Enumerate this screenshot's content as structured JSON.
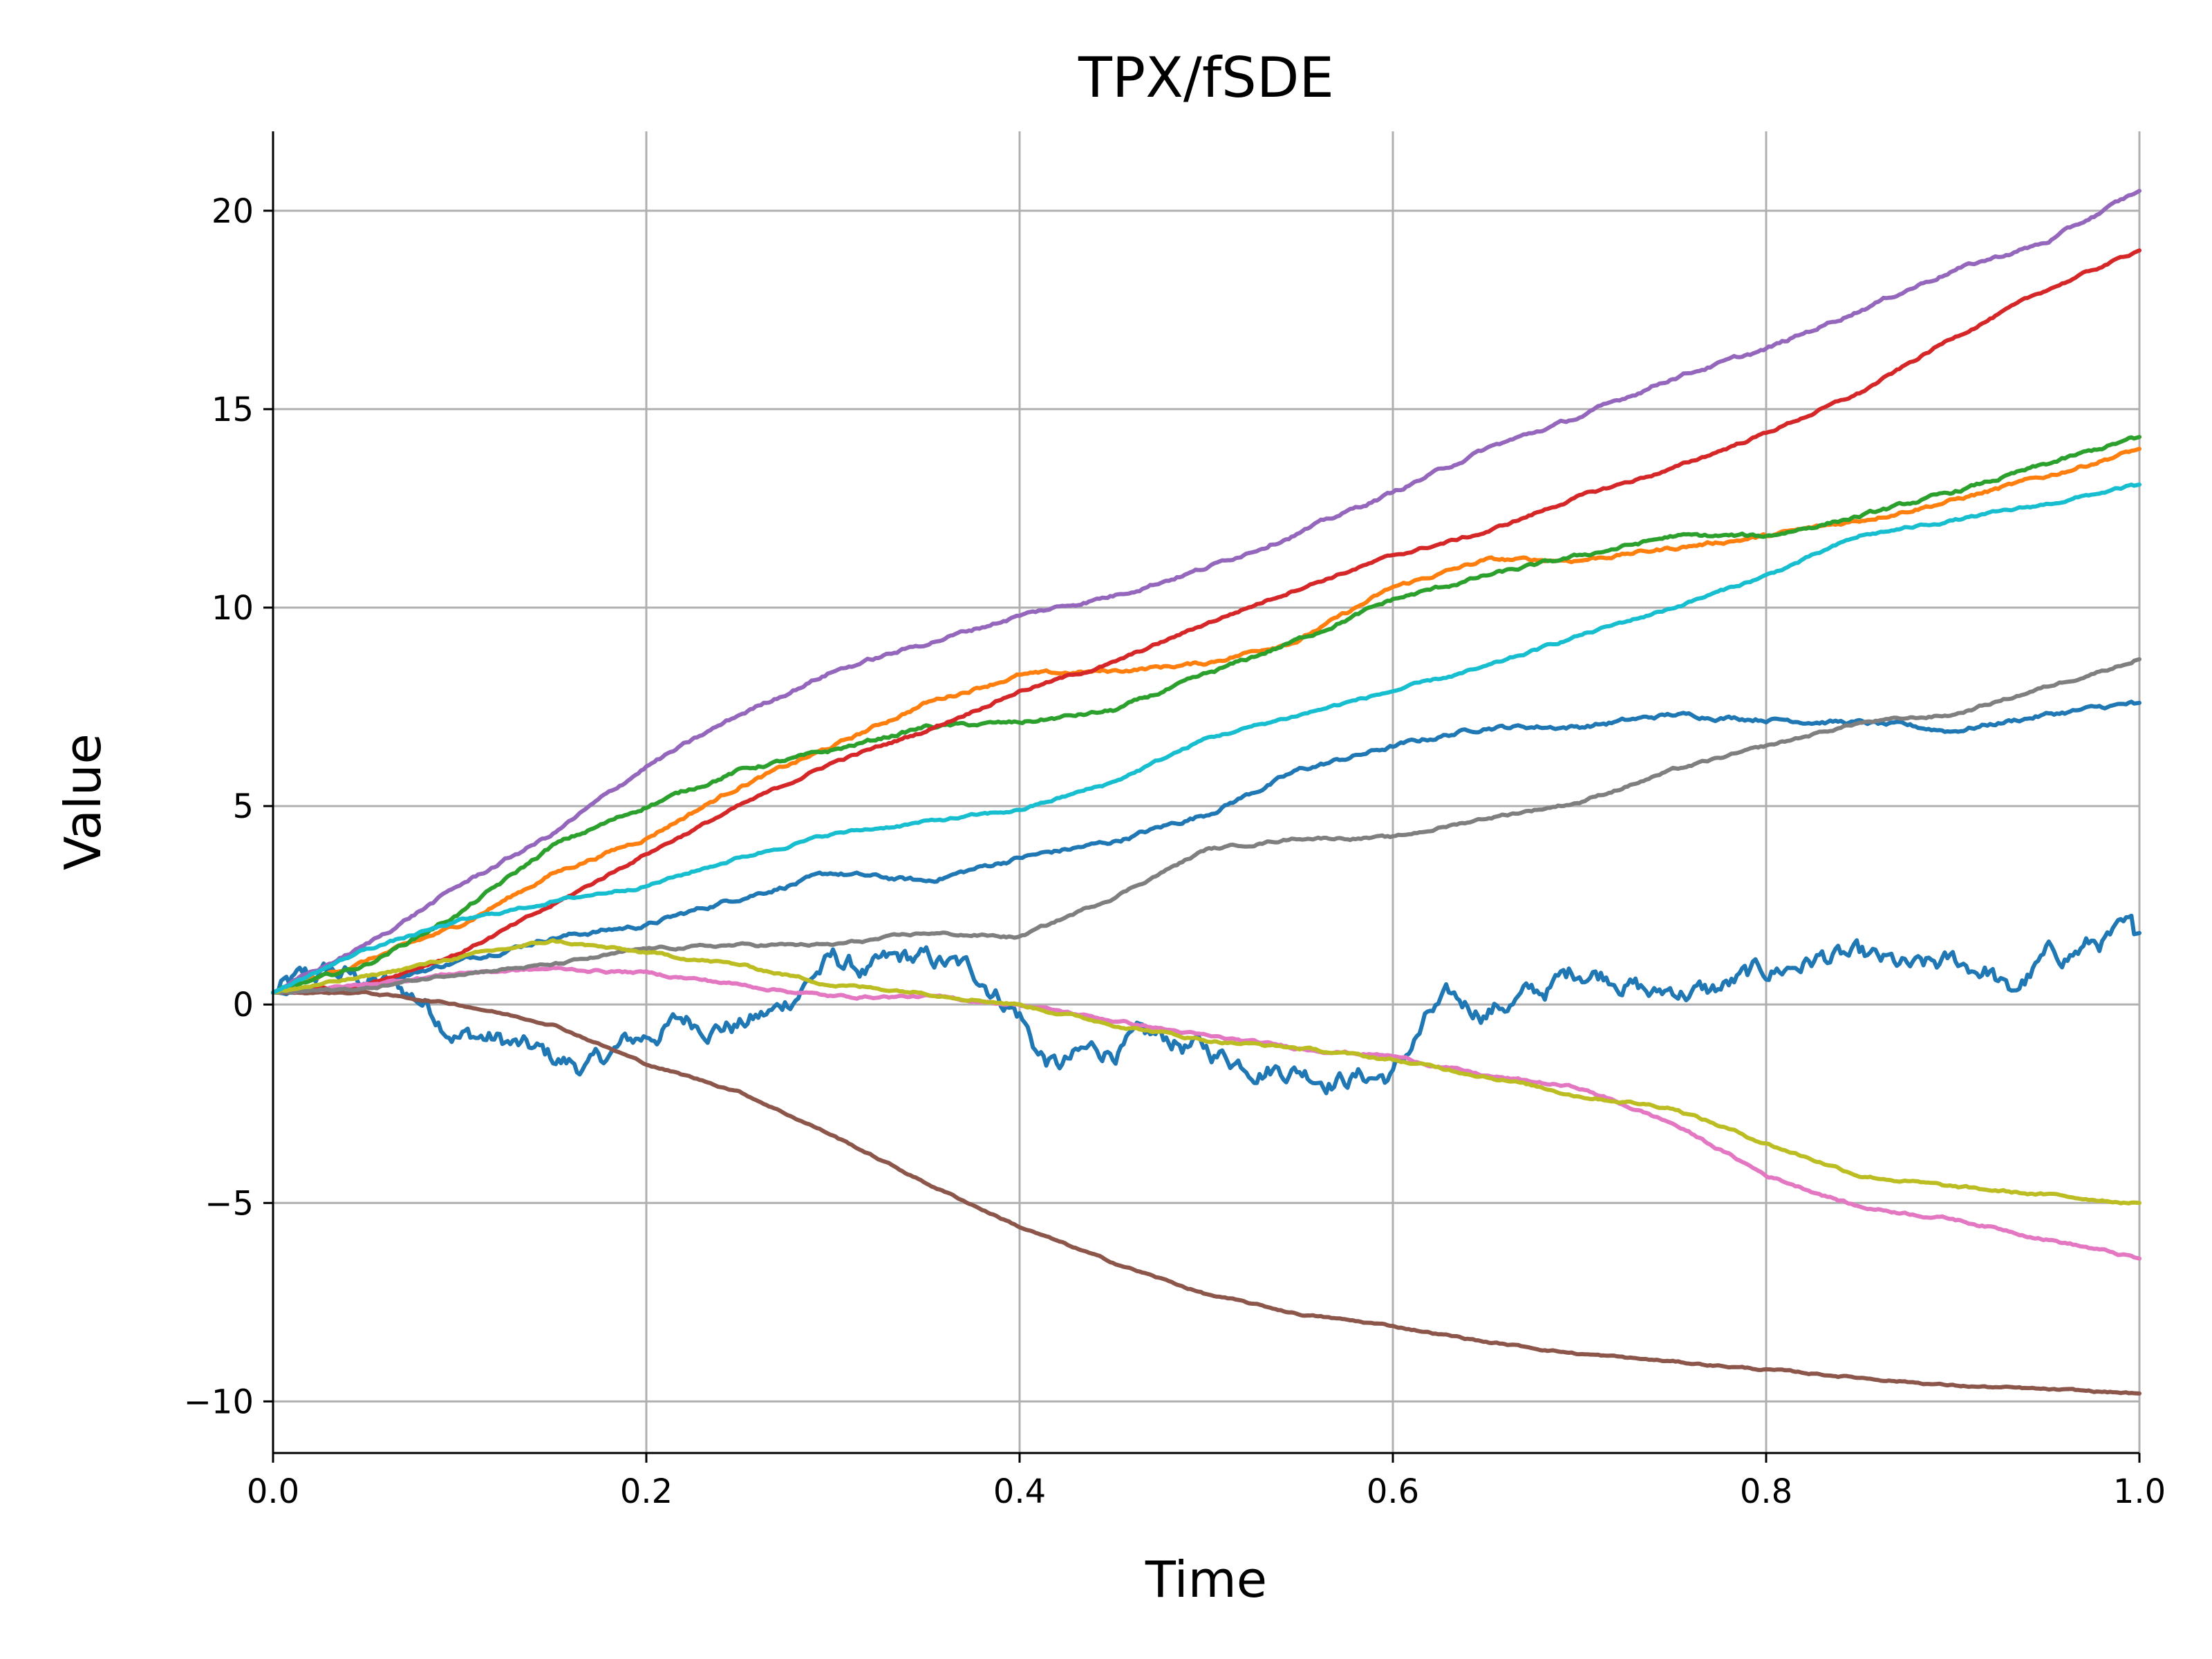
{
  "chart_data": {
    "type": "line",
    "title": "TPX/fSDE",
    "xlabel": "Time",
    "ylabel": "Value",
    "xlim": [
      0.0,
      1.0
    ],
    "ylim": [
      -11.3,
      22.0
    ],
    "xticks": [
      0.0,
      0.2,
      0.4,
      0.6,
      0.8,
      1.0
    ],
    "xtick_labels": [
      "0.0",
      "0.2",
      "0.4",
      "0.6",
      "0.8",
      "1.0"
    ],
    "yticks": [
      -10,
      -5,
      0,
      5,
      10,
      15,
      20
    ],
    "ytick_labels": [
      "−10",
      "−5",
      "0",
      "5",
      "10",
      "15",
      "20"
    ],
    "grid": true,
    "legend": "none",
    "series": [
      {
        "color": "#1f77b4",
        "noise": 0.25,
        "x": [
          0,
          0.03,
          0.06,
          0.08,
          0.1,
          0.12,
          0.15,
          0.17,
          0.19,
          0.2,
          0.22,
          0.25,
          0.27,
          0.29,
          0.3,
          0.32,
          0.34,
          0.36,
          0.38,
          0.4,
          0.41,
          0.42,
          0.44,
          0.46,
          0.48,
          0.5,
          0.52,
          0.55,
          0.57,
          0.6,
          0.62,
          0.63,
          0.65,
          0.68,
          0.7,
          0.72,
          0.74,
          0.75,
          0.77,
          0.8,
          0.83,
          0.85,
          0.88,
          0.9,
          0.92,
          0.93,
          0.95,
          0.98,
          1.0
        ],
        "y": [
          0.3,
          0.8,
          0.5,
          0.1,
          -0.7,
          -0.9,
          -1.4,
          -1.6,
          -1.0,
          -0.8,
          -0.4,
          -0.5,
          -0.2,
          0.8,
          1.1,
          0.8,
          1.1,
          1.0,
          0.7,
          -0.2,
          -1.2,
          -1.6,
          -1.2,
          -1.0,
          -0.9,
          -1.2,
          -1.4,
          -1.6,
          -1.8,
          -1.8,
          -0.3,
          0.0,
          -0.1,
          0.3,
          0.9,
          0.8,
          0.2,
          0.4,
          0.3,
          0.8,
          1.2,
          1.1,
          0.8,
          1.0,
          0.9,
          0.2,
          1.1,
          1.6,
          1.8
        ]
      },
      {
        "color": "#1f77b4",
        "noise": 0.05,
        "x": [
          0,
          0.05,
          0.1,
          0.15,
          0.2,
          0.25,
          0.3,
          0.35,
          0.4,
          0.45,
          0.5,
          0.55,
          0.6,
          0.65,
          0.7,
          0.75,
          0.8,
          0.85,
          0.9,
          0.95,
          1.0
        ],
        "y": [
          0.3,
          0.5,
          1.1,
          1.7,
          2.0,
          2.7,
          3.3,
          3.1,
          3.7,
          4.1,
          4.8,
          5.9,
          6.5,
          7.0,
          7.0,
          7.3,
          7.2,
          7.1,
          6.9,
          7.3,
          7.6
        ]
      },
      {
        "color": "#ff7f0e",
        "noise": 0.04,
        "x": [
          0,
          0.05,
          0.1,
          0.15,
          0.2,
          0.25,
          0.3,
          0.35,
          0.4,
          0.45,
          0.5,
          0.55,
          0.6,
          0.65,
          0.7,
          0.75,
          0.8,
          0.85,
          0.9,
          0.95,
          1.0
        ],
        "y": [
          0.3,
          1.1,
          2.0,
          3.3,
          4.2,
          5.5,
          6.5,
          7.6,
          8.3,
          8.4,
          8.6,
          9.2,
          10.5,
          11.2,
          11.2,
          11.5,
          11.8,
          12.2,
          12.7,
          13.3,
          14.0
        ]
      },
      {
        "color": "#2ca02c",
        "noise": 0.04,
        "x": [
          0,
          0.05,
          0.1,
          0.15,
          0.2,
          0.25,
          0.3,
          0.35,
          0.4,
          0.45,
          0.5,
          0.55,
          0.6,
          0.65,
          0.7,
          0.75,
          0.8,
          0.85,
          0.9,
          0.95,
          1.0
        ],
        "y": [
          0.3,
          1.0,
          2.3,
          4.0,
          5.0,
          5.9,
          6.4,
          7.0,
          7.1,
          7.4,
          8.3,
          9.2,
          10.2,
          10.8,
          11.3,
          11.8,
          11.8,
          12.3,
          12.9,
          13.6,
          14.3
        ]
      },
      {
        "color": "#d62728",
        "noise": 0.03,
        "x": [
          0,
          0.05,
          0.1,
          0.15,
          0.2,
          0.25,
          0.3,
          0.35,
          0.4,
          0.45,
          0.5,
          0.55,
          0.6,
          0.65,
          0.7,
          0.75,
          0.8,
          0.85,
          0.9,
          0.95,
          1.0
        ],
        "y": [
          0.3,
          0.5,
          1.3,
          2.5,
          3.8,
          5.0,
          6.1,
          6.9,
          7.9,
          8.6,
          9.6,
          10.5,
          11.3,
          11.9,
          12.8,
          13.5,
          14.4,
          15.4,
          16.8,
          18.0,
          19.0
        ]
      },
      {
        "color": "#9467bd",
        "noise": 0.04,
        "x": [
          0,
          0.05,
          0.1,
          0.15,
          0.2,
          0.25,
          0.3,
          0.35,
          0.4,
          0.45,
          0.5,
          0.55,
          0.6,
          0.65,
          0.7,
          0.75,
          0.8,
          0.85,
          0.9,
          0.95,
          1.0
        ],
        "y": [
          0.3,
          1.5,
          3.0,
          4.3,
          6.0,
          7.3,
          8.4,
          9.1,
          9.8,
          10.3,
          11.0,
          11.9,
          12.9,
          14.0,
          14.8,
          15.8,
          16.5,
          17.5,
          18.5,
          19.2,
          20.5
        ]
      },
      {
        "color": "#8c564b",
        "noise": 0.02,
        "x": [
          0,
          0.05,
          0.1,
          0.15,
          0.2,
          0.25,
          0.3,
          0.35,
          0.4,
          0.45,
          0.5,
          0.55,
          0.6,
          0.65,
          0.7,
          0.75,
          0.8,
          0.85,
          0.9,
          0.95,
          1.0
        ],
        "y": [
          0.3,
          0.3,
          0.0,
          -0.5,
          -1.5,
          -2.2,
          -3.3,
          -4.5,
          -5.6,
          -6.5,
          -7.3,
          -7.8,
          -8.1,
          -8.5,
          -8.8,
          -9.0,
          -9.2,
          -9.4,
          -9.6,
          -9.7,
          -9.8
        ]
      },
      {
        "color": "#e377c2",
        "noise": 0.03,
        "x": [
          0,
          0.05,
          0.1,
          0.15,
          0.2,
          0.25,
          0.3,
          0.35,
          0.4,
          0.45,
          0.5,
          0.55,
          0.6,
          0.65,
          0.7,
          0.75,
          0.8,
          0.85,
          0.9,
          0.95,
          1.0
        ],
        "y": [
          0.3,
          0.5,
          0.8,
          0.9,
          0.8,
          0.5,
          0.2,
          0.2,
          0.0,
          -0.4,
          -0.8,
          -1.1,
          -1.3,
          -1.8,
          -2.1,
          -3.0,
          -4.3,
          -5.1,
          -5.4,
          -5.9,
          -6.4
        ]
      },
      {
        "color": "#7f7f7f",
        "noise": 0.03,
        "x": [
          0,
          0.05,
          0.1,
          0.15,
          0.2,
          0.25,
          0.3,
          0.35,
          0.4,
          0.45,
          0.5,
          0.55,
          0.6,
          0.65,
          0.7,
          0.75,
          0.8,
          0.85,
          0.9,
          0.95,
          1.0
        ],
        "y": [
          0.3,
          0.4,
          0.8,
          1.0,
          1.4,
          1.5,
          1.5,
          1.8,
          1.7,
          2.7,
          3.9,
          4.2,
          4.2,
          4.7,
          5.1,
          5.9,
          6.5,
          7.1,
          7.3,
          8.0,
          8.7
        ]
      },
      {
        "color": "#bcbd22",
        "noise": 0.03,
        "x": [
          0,
          0.05,
          0.1,
          0.15,
          0.2,
          0.25,
          0.3,
          0.35,
          0.4,
          0.45,
          0.5,
          0.55,
          0.6,
          0.65,
          0.7,
          0.75,
          0.8,
          0.85,
          0.9,
          0.95,
          1.0
        ],
        "y": [
          0.3,
          0.7,
          1.2,
          1.6,
          1.3,
          1.0,
          0.5,
          0.3,
          0.0,
          -0.5,
          -0.9,
          -1.1,
          -1.4,
          -1.8,
          -2.3,
          -2.6,
          -3.5,
          -4.3,
          -4.6,
          -4.8,
          -5.0
        ]
      },
      {
        "color": "#17becf",
        "noise": 0.03,
        "x": [
          0,
          0.05,
          0.1,
          0.15,
          0.2,
          0.25,
          0.3,
          0.35,
          0.4,
          0.45,
          0.5,
          0.55,
          0.6,
          0.65,
          0.7,
          0.75,
          0.8,
          0.85,
          0.9,
          0.95,
          1.0
        ],
        "y": [
          0.3,
          1.4,
          2.1,
          2.6,
          3.0,
          3.7,
          4.3,
          4.6,
          4.9,
          5.6,
          6.7,
          7.3,
          7.9,
          8.5,
          9.3,
          10.0,
          10.8,
          11.8,
          12.2,
          12.6,
          13.1
        ]
      }
    ]
  }
}
